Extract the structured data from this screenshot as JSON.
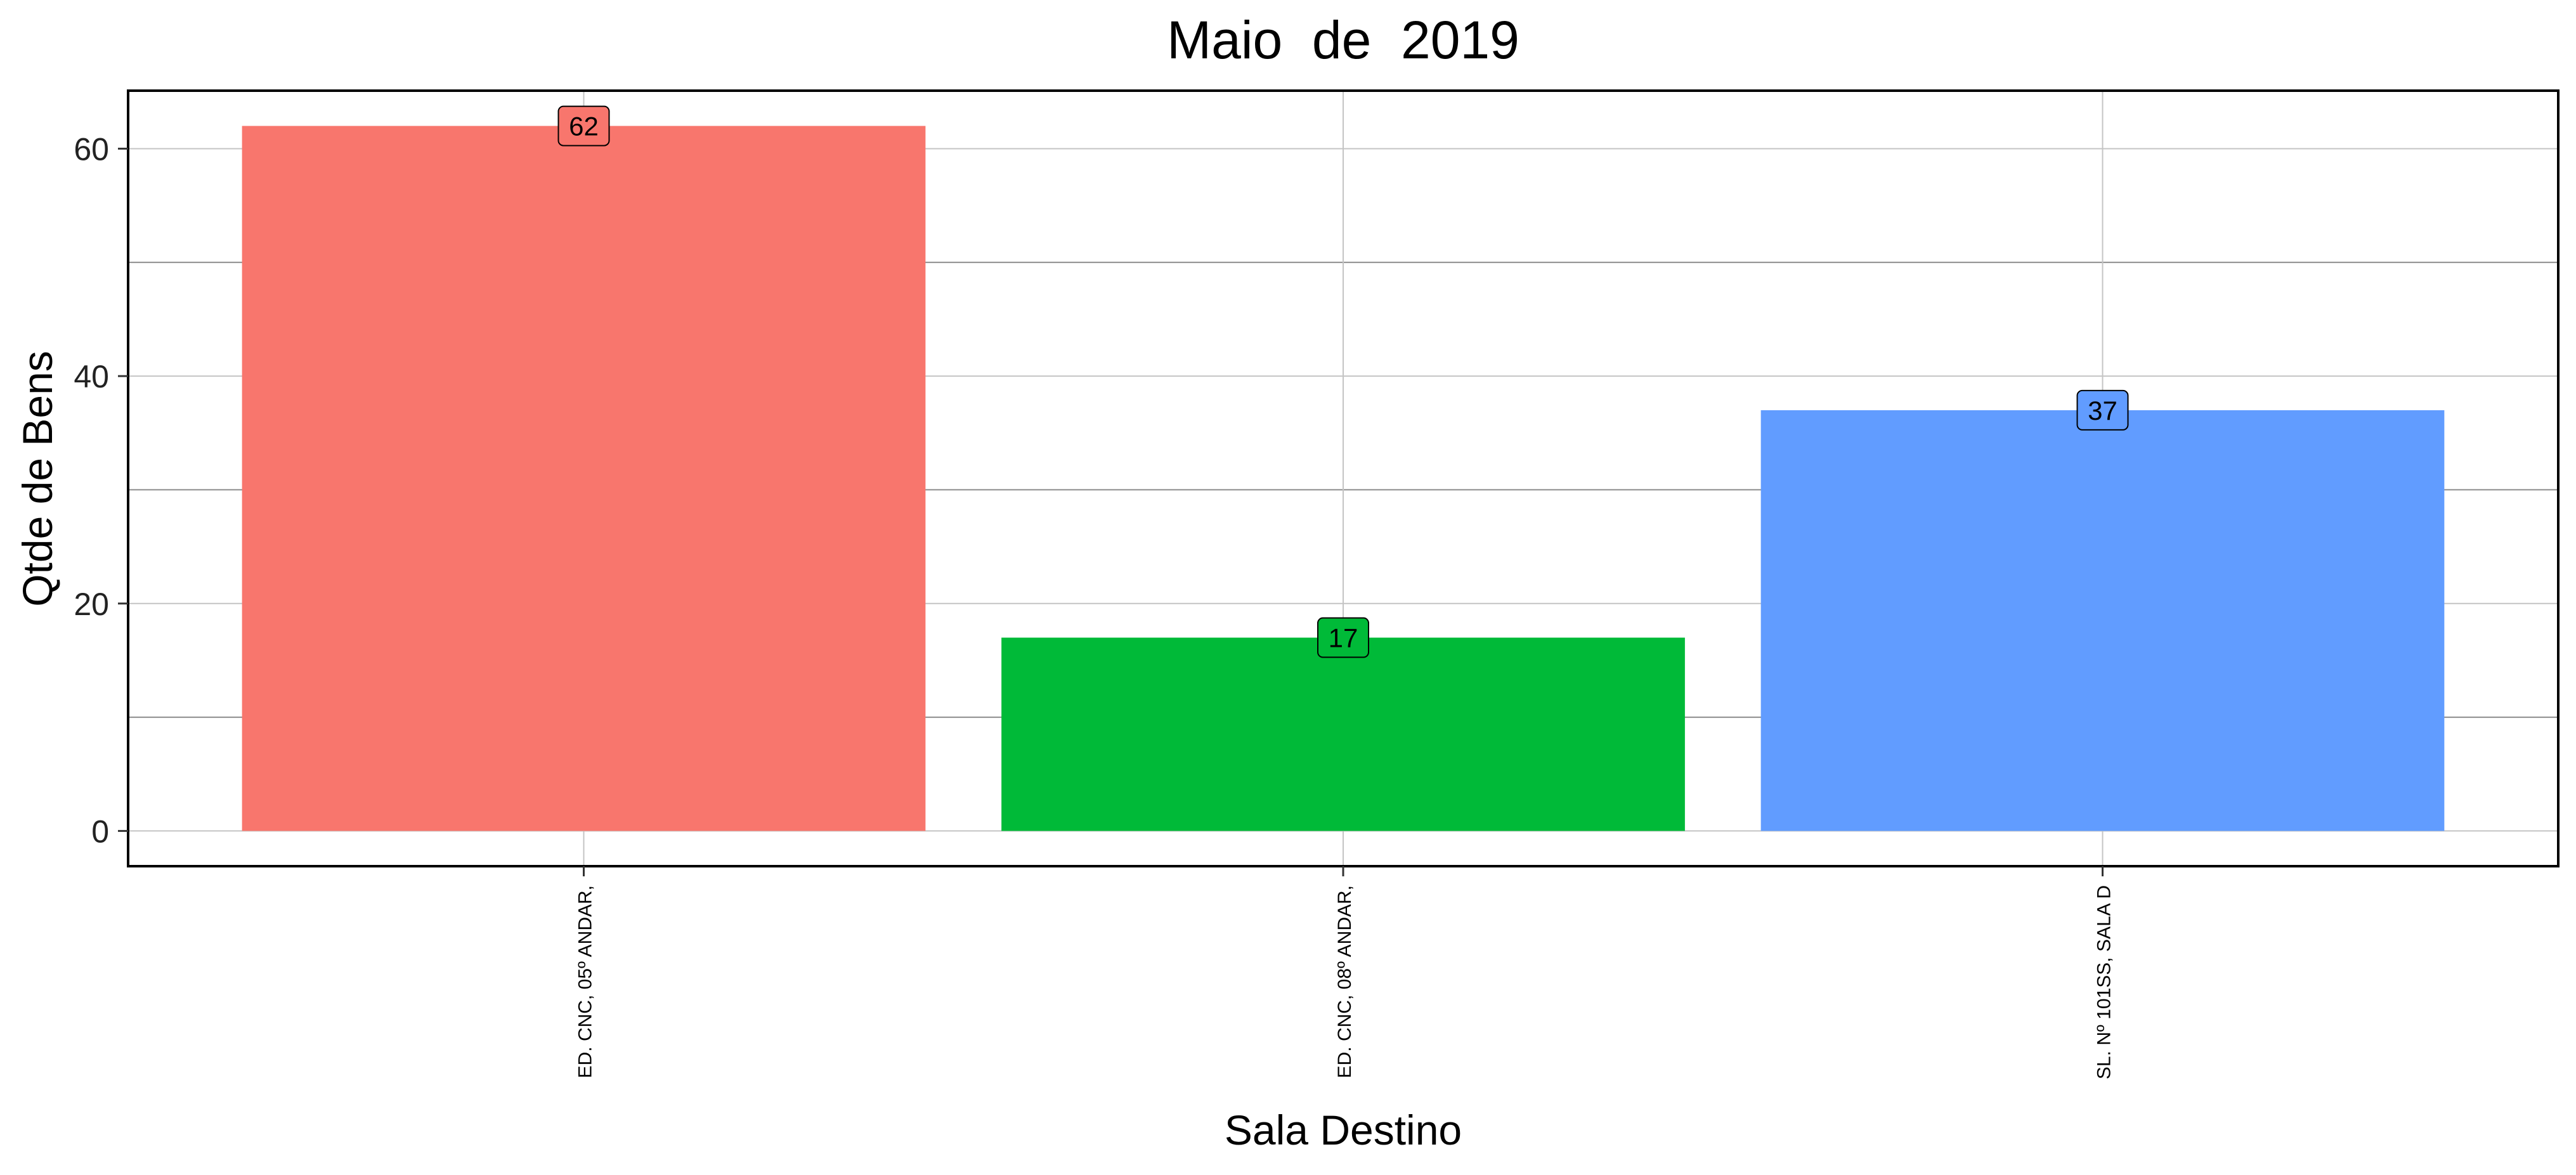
{
  "chart_data": {
    "type": "bar",
    "title": "Maio  de  2019",
    "xlabel": "Sala Destino",
    "ylabel": "Qtde de Bens",
    "categories": [
      "ED. CNC, 05º ANDAR,",
      "ED. CNC, 08º ANDAR,",
      "SL. Nº 101SS, SALA D"
    ],
    "values": [
      62,
      17,
      37
    ],
    "data_labels": [
      "62",
      "17",
      "37"
    ],
    "bar_colors": [
      "#F8766D",
      "#00BA38",
      "#619CFF"
    ],
    "ylim": [
      -3.1,
      65.1
    ],
    "yticks": [
      0,
      20,
      40,
      60
    ],
    "ytick_labels": [
      "0",
      "20",
      "40",
      "60"
    ],
    "grid": true,
    "legend": "none"
  }
}
